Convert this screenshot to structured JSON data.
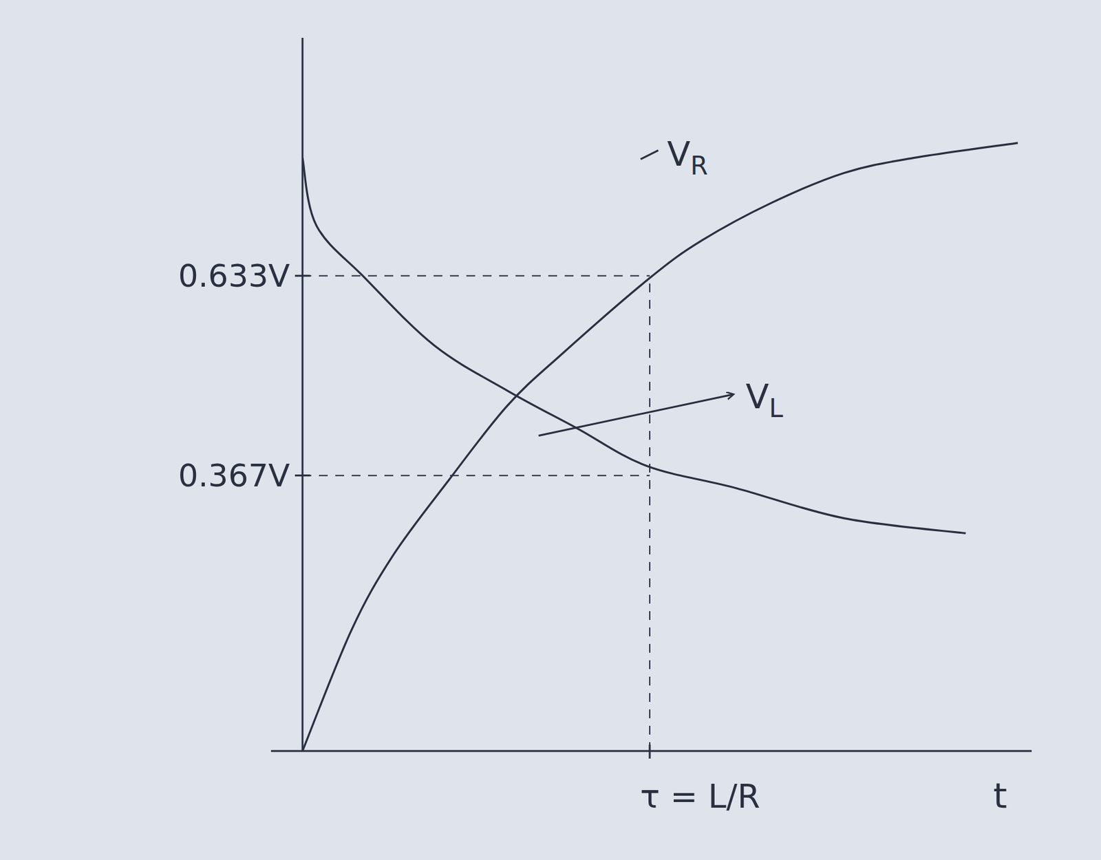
{
  "chart_data": {
    "type": "line",
    "x_label": "t",
    "xlim": [
      0,
      2.1
    ],
    "ylim": [
      0,
      0.95
    ],
    "xticks": [
      {
        "value": 1,
        "label": "τ = L/R"
      }
    ],
    "yticks": [
      {
        "value": 0.367,
        "label": "0.367V"
      },
      {
        "value": 0.633,
        "label": "0.633V"
      }
    ],
    "grid": true,
    "series": [
      {
        "name": "VR",
        "color": "#2b3040",
        "line_style": "solid",
        "x": [
          0,
          0.14,
          0.26,
          0.42,
          0.59,
          0.75,
          1.0,
          1.15,
          1.35,
          1.56,
          1.76,
          2.06
        ],
        "values": [
          0,
          0.16,
          0.26,
          0.36,
          0.46,
          0.53,
          0.63,
          0.68,
          0.73,
          0.77,
          0.79,
          0.81
        ]
      },
      {
        "name": "VL",
        "color": "#2b3040",
        "line_style": "solid",
        "x": [
          0,
          0.04,
          0.18,
          0.38,
          0.59,
          0.79,
          0.99,
          1.25,
          1.56,
          1.91
        ],
        "values": [
          0.79,
          0.7,
          0.63,
          0.54,
          0.48,
          0.43,
          0.38,
          0.35,
          0.31,
          0.29
        ]
      }
    ]
  }
}
